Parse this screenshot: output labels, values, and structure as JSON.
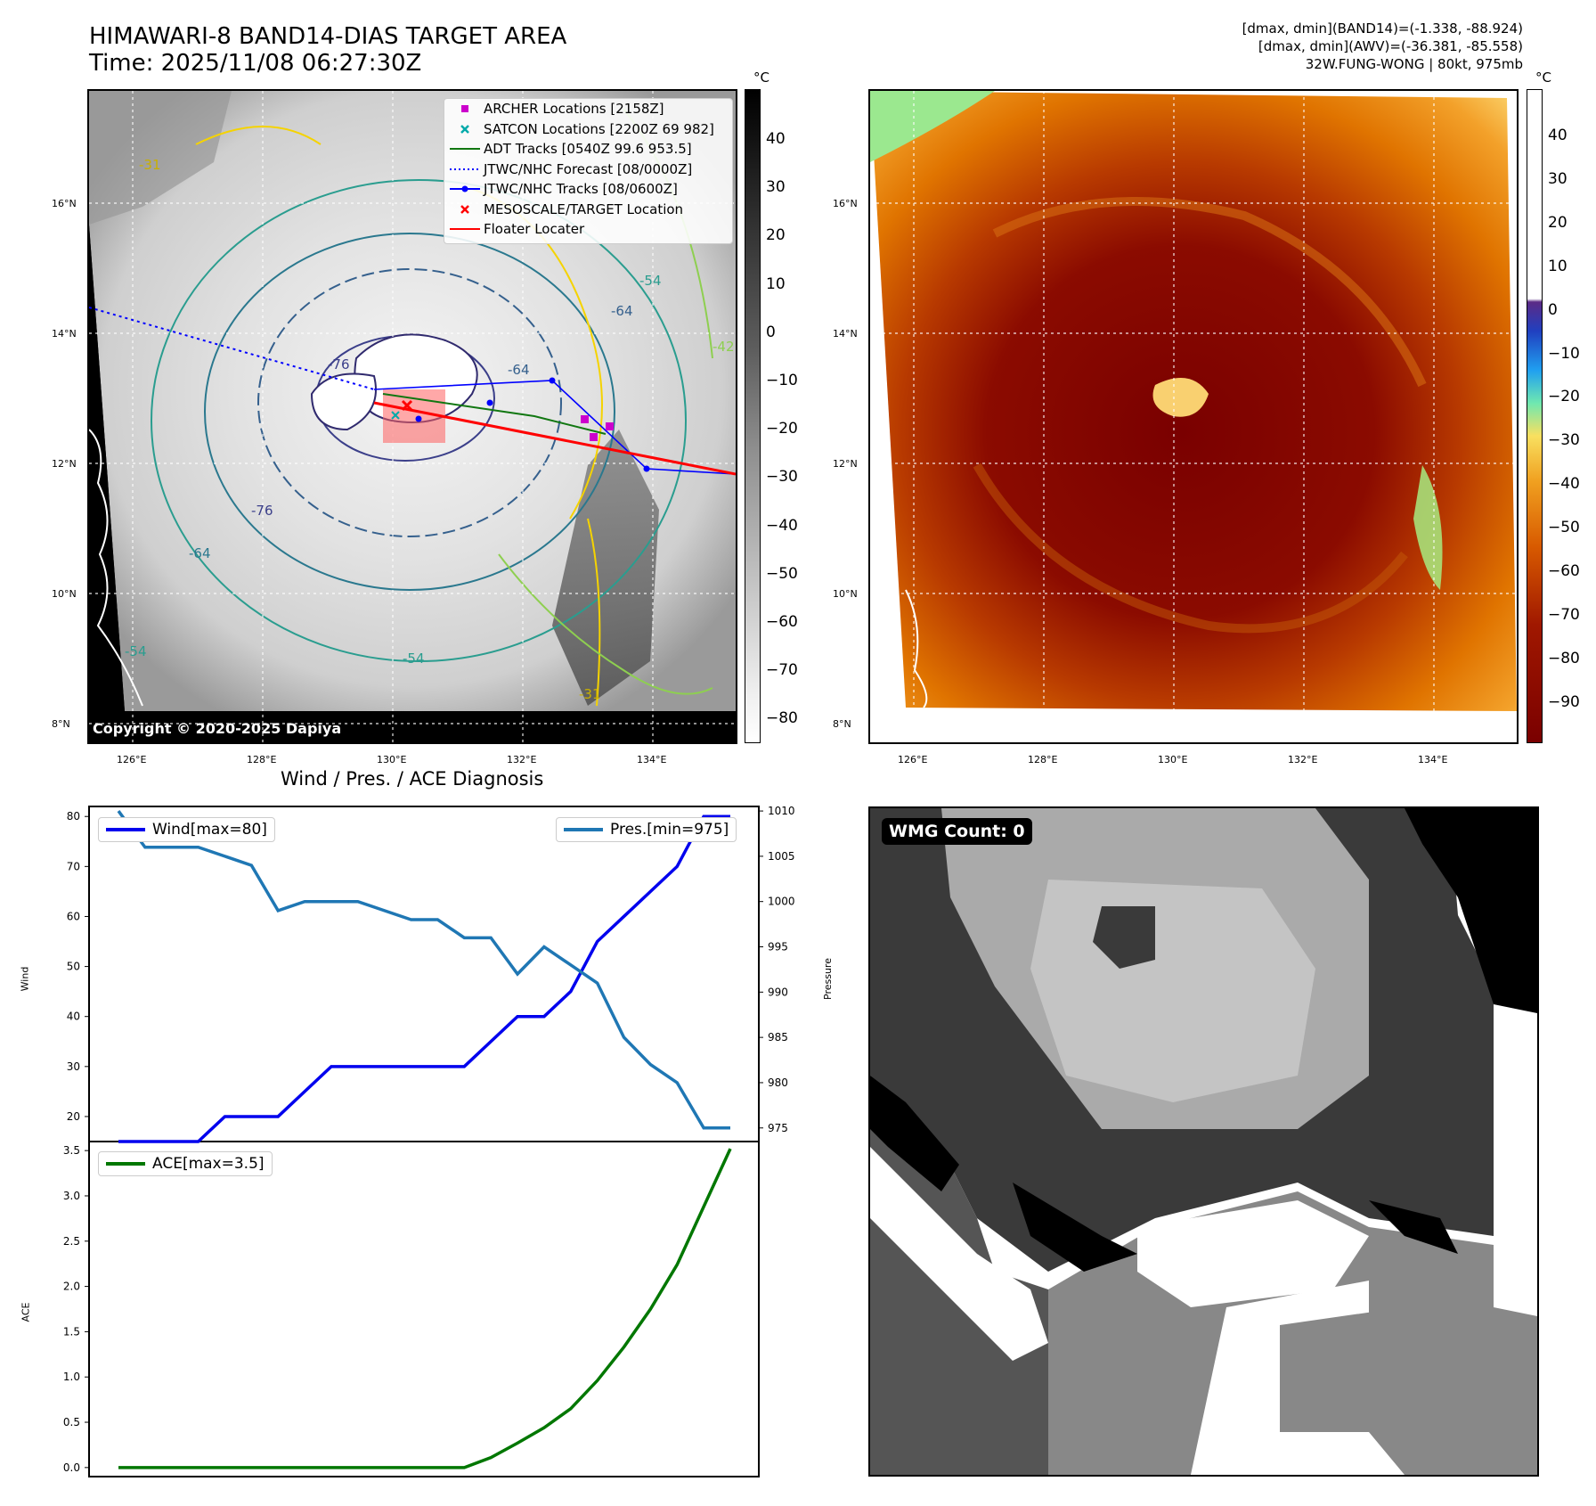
{
  "header": {
    "title_line1": "HIMAWARI-8 BAND14-DIAS TARGET AREA",
    "title_line2": "Time: 2025/11/08 06:27:30Z",
    "info_line1": "[dmax, dmin](BAND14)=(-1.338, -88.924)",
    "info_line2": "[dmax, dmin](AWV)=(-36.381, -85.558)",
    "info_line3": "32W.FUNG-WONG | 80kt, 975mb"
  },
  "map_axes": {
    "lon_labels": [
      "126°E",
      "128°E",
      "130°E",
      "132°E",
      "134°E"
    ],
    "lat_labels": [
      "16°N",
      "14°N",
      "12°N",
      "10°N",
      "8°N"
    ]
  },
  "colorbar_ir": {
    "unit": "°C",
    "ticks": [
      "40",
      "30",
      "20",
      "10",
      "0",
      "−10",
      "−20",
      "−30",
      "−40",
      "−50",
      "−60",
      "−70",
      "−80"
    ]
  },
  "colorbar_wv": {
    "unit": "°C",
    "ticks": [
      "40",
      "30",
      "20",
      "10",
      "0",
      "−10",
      "−20",
      "−30",
      "−40",
      "−50",
      "−60",
      "−70",
      "−80",
      "−90"
    ]
  },
  "map_legend": [
    {
      "label": "ARCHER Locations [2158Z]",
      "color": "#cc00cc",
      "kind": "square"
    },
    {
      "label": "SATCON Locations [2200Z 69 982]",
      "color": "#00aaaa",
      "kind": "x"
    },
    {
      "label": "ADT Tracks [0540Z 99.6 953.5]",
      "color": "#117711",
      "kind": "line"
    },
    {
      "label": "JTWC/NHC Forecast [08/0000Z]",
      "color": "#0000ff",
      "kind": "dotted"
    },
    {
      "label": "JTWC/NHC Tracks [08/0600Z]",
      "color": "#0000ff",
      "kind": "linedot"
    },
    {
      "label": "MESOSCALE/TARGET Location",
      "color": "#ff0000",
      "kind": "x"
    },
    {
      "label": "Floater Locater",
      "color": "#ff0000",
      "kind": "line"
    }
  ],
  "copyright": "Copyright © 2020-2025 Dapiya",
  "contour_labels": [
    "-64",
    "-64",
    "-54",
    "-76",
    "-76",
    "-64",
    "-54",
    "-31",
    "-31",
    "-54",
    "-42"
  ],
  "wmg_count": "WMG Count: 0",
  "chart_data": [
    {
      "type": "line",
      "title": "Wind / Pres. / ACE Diagnosis",
      "ylabel": "Wind",
      "ylabel2": "Pressure",
      "ylim": [
        15,
        82
      ],
      "ylim2": [
        973.5,
        1010.5
      ],
      "yticks": [
        20,
        30,
        40,
        50,
        60,
        70,
        80
      ],
      "yticks2": [
        975,
        980,
        985,
        990,
        995,
        1000,
        1005,
        1010
      ],
      "series": [
        {
          "name": "Wind[max=80]",
          "color": "#0000ee",
          "values": [
            15,
            15,
            15,
            15,
            20,
            20,
            20,
            25,
            30,
            30,
            30,
            30,
            30,
            30,
            35,
            40,
            40,
            45,
            55,
            60,
            65,
            70,
            80,
            80
          ]
        },
        {
          "name": "Pres.[min=975]",
          "color": "#1f77b4",
          "axis": "right",
          "values": [
            1010,
            1006,
            1006,
            1006,
            1005,
            1004,
            999,
            1000,
            1000,
            1000,
            999,
            998,
            998,
            996,
            996,
            992,
            995,
            993,
            991,
            985,
            982,
            980,
            975,
            975
          ]
        }
      ]
    },
    {
      "type": "line",
      "ylabel": "ACE",
      "ylim": [
        -0.1,
        3.6
      ],
      "yticks": [
        "0.0",
        "0.5",
        "1.0",
        "1.5",
        "2.0",
        "2.5",
        "3.0",
        "3.5"
      ],
      "series": [
        {
          "name": "ACE[max=3.5]",
          "color": "#007700",
          "values": [
            0,
            0,
            0,
            0,
            0,
            0,
            0,
            0,
            0,
            0,
            0,
            0,
            0,
            0,
            0.11,
            0.27,
            0.44,
            0.65,
            0.96,
            1.33,
            1.75,
            2.24,
            2.88,
            3.52
          ]
        }
      ]
    }
  ]
}
